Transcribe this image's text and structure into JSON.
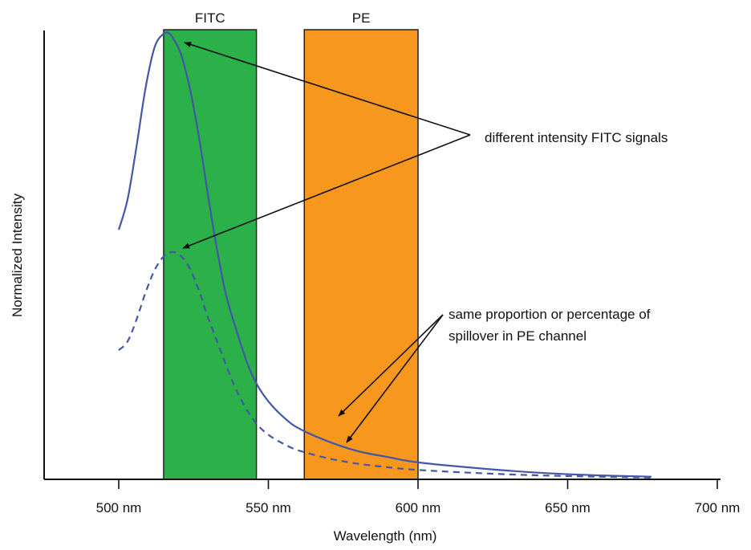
{
  "chart_data": {
    "type": "line",
    "title": "",
    "xlabel": "Wavelength (nm)",
    "ylabel": "Normalized Intensity",
    "xlim": [
      475,
      700
    ],
    "ylim": [
      0,
      1
    ],
    "grid": false,
    "xticks": [
      {
        "value": 500,
        "label": "500 nm"
      },
      {
        "value": 550,
        "label": "550 nm"
      },
      {
        "value": 600,
        "label": "600 nm"
      },
      {
        "value": 650,
        "label": "650 nm"
      },
      {
        "value": 700,
        "label": "700 nm"
      }
    ],
    "bands": [
      {
        "label": "FITC",
        "x0": 515,
        "x1": 546,
        "color": "#2bb04a"
      },
      {
        "label": "PE",
        "x0": 562,
        "x1": 600,
        "color": "#f7971d"
      }
    ],
    "series": [
      {
        "style": "solid",
        "color": "#4456a8",
        "x": [
          500,
          503,
          506,
          509,
          512,
          515,
          517,
          519,
          521,
          524,
          527,
          530,
          533,
          536,
          540,
          543,
          546,
          550,
          555,
          560,
          570,
          580,
          590,
          600,
          620,
          640,
          660,
          678
        ],
        "y": [
          0.56,
          0.63,
          0.75,
          0.88,
          0.97,
          1.0,
          1.0,
          0.98,
          0.95,
          0.87,
          0.76,
          0.63,
          0.51,
          0.41,
          0.32,
          0.26,
          0.215,
          0.175,
          0.14,
          0.115,
          0.085,
          0.063,
          0.05,
          0.038,
          0.025,
          0.015,
          0.009,
          0.006
        ]
      },
      {
        "style": "dashed",
        "color": "#4456a8",
        "x": [
          500,
          503,
          506,
          509,
          512,
          515,
          518,
          521,
          524,
          527,
          530,
          534,
          538,
          542,
          546,
          550,
          555,
          560,
          570,
          580,
          590,
          600,
          620,
          640,
          660,
          678
        ],
        "y": [
          0.29,
          0.31,
          0.36,
          0.42,
          0.47,
          0.5,
          0.51,
          0.5,
          0.47,
          0.42,
          0.36,
          0.29,
          0.22,
          0.165,
          0.125,
          0.1,
          0.08,
          0.065,
          0.047,
          0.035,
          0.027,
          0.021,
          0.014,
          0.009,
          0.006,
          0.004
        ]
      }
    ],
    "annotations": [
      {
        "text": "different intensity FITC signals"
      },
      {
        "text_lines": [
          "same proportion or percentage of",
          "spillover in PE channel"
        ]
      }
    ]
  }
}
